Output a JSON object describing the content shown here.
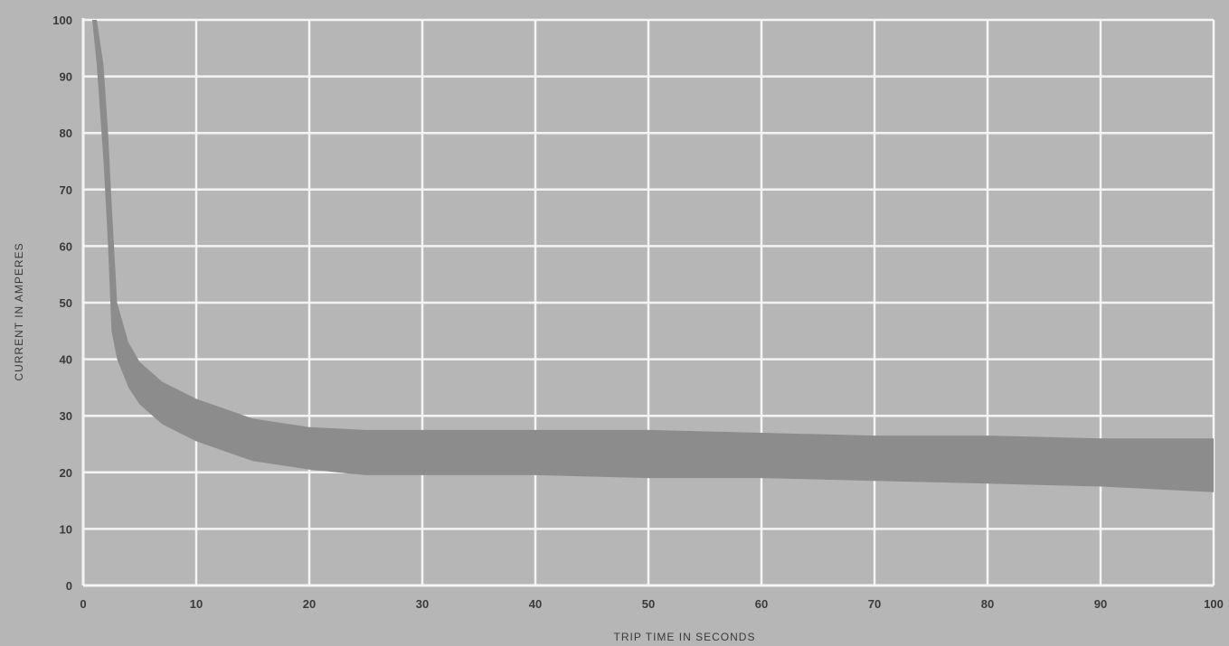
{
  "chart_data": {
    "type": "area",
    "title": "",
    "xlabel": "TRIP TIME IN SECONDS",
    "ylabel": "CURRENT IN AMPERES",
    "xlim": [
      0,
      100
    ],
    "ylim": [
      0,
      100
    ],
    "x_ticks": [
      "0",
      "10",
      "20",
      "30",
      "40",
      "50",
      "60",
      "70",
      "80",
      "90",
      "100"
    ],
    "y_ticks": [
      "0",
      "10",
      "20",
      "30",
      "40",
      "50",
      "60",
      "70",
      "80",
      "90",
      "100"
    ],
    "grid": true,
    "legend": "none",
    "colors": {
      "background": "#b6b6b6",
      "grid": "#f4f4f4",
      "band": "#8c8c8c",
      "text": "#3a3a3a"
    },
    "series": [
      {
        "x": [
          0.8,
          1.2,
          1.8,
          2.2,
          2.5,
          3,
          4,
          5,
          7,
          10,
          15,
          20,
          25,
          30,
          40,
          50,
          60,
          70,
          80,
          90,
          100
        ],
        "upper": [
          100,
          100,
          92,
          80,
          68,
          50,
          43,
          39.5,
          36,
          33,
          29.5,
          28,
          27.5,
          27.5,
          27.5,
          27.5,
          27,
          26.5,
          26.5,
          26,
          26
        ],
        "lower": [
          100,
          92,
          75,
          60,
          45,
          40,
          35,
          32,
          28.5,
          25.5,
          22,
          20.5,
          19.5,
          19.5,
          19.5,
          19,
          19,
          18.5,
          18,
          17.5,
          16.5
        ]
      }
    ]
  }
}
